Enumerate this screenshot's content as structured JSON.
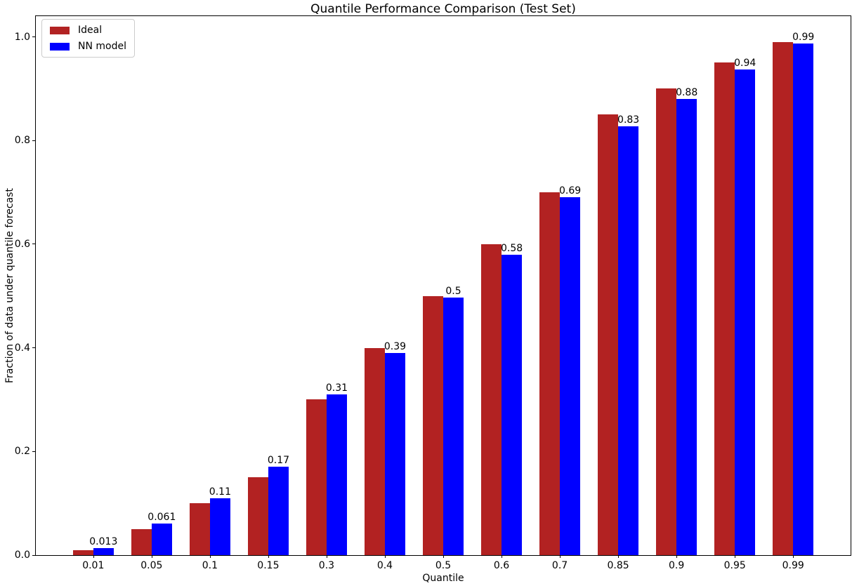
{
  "chart_data": {
    "type": "bar",
    "title": "Quantile Performance Comparison (Test Set)",
    "xlabel": "Quantile",
    "ylabel": "Fraction of data under quantile forecast",
    "categories": [
      "0.01",
      "0.05",
      "0.1",
      "0.15",
      "0.3",
      "0.4",
      "0.5",
      "0.6",
      "0.7",
      "0.85",
      "0.9",
      "0.95",
      "0.99"
    ],
    "series": [
      {
        "name": "Ideal",
        "color": "#b22222",
        "values": [
          0.01,
          0.05,
          0.1,
          0.15,
          0.3,
          0.4,
          0.5,
          0.6,
          0.7,
          0.85,
          0.9,
          0.95,
          0.99
        ]
      },
      {
        "name": "NN model",
        "color": "#0000ff",
        "values": [
          0.013,
          0.061,
          0.11,
          0.17,
          0.31,
          0.39,
          0.497,
          0.58,
          0.69,
          0.828,
          0.88,
          0.937,
          0.987
        ],
        "bar_labels": [
          "0.013",
          "0.061",
          "0.11",
          "0.17",
          "0.31",
          "0.39",
          "0.5",
          "0.58",
          "0.69",
          "0.83",
          "0.88",
          "0.94",
          "0.99"
        ]
      }
    ],
    "yticks": {
      "values": [
        0.0,
        0.2,
        0.4,
        0.6,
        0.8,
        1.0
      ],
      "labels": [
        "0.0",
        "0.2",
        "0.4",
        "0.6",
        "0.8",
        "1.0"
      ]
    },
    "ylim": [
      0,
      1.04
    ],
    "xlim": [
      -0.985,
      12.985
    ],
    "bar_width": 0.35,
    "grid": false,
    "legend": {
      "position": "upper left"
    },
    "colors": {
      "spine": "#000000",
      "text": "#000000",
      "background": "#ffffff"
    }
  }
}
